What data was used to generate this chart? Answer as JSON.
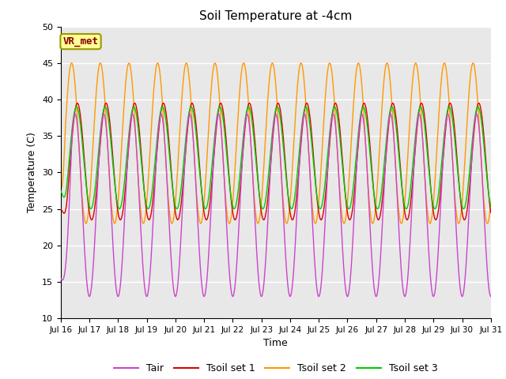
{
  "title": "Soil Temperature at -4cm",
  "xlabel": "Time",
  "ylabel": "Temperature (C)",
  "ylim": [
    10,
    50
  ],
  "yticks": [
    10,
    15,
    20,
    25,
    30,
    35,
    40,
    45,
    50
  ],
  "annotation_text": "VR_met",
  "annotation_box_color": "#ffff99",
  "annotation_text_color": "#8b0000",
  "annotation_border_color": "#999900",
  "background_color": "#e8e8e8",
  "line_colors": {
    "Tair": "#cc44cc",
    "Tsoil_set1": "#dd0000",
    "Tsoil_set2": "#ff9900",
    "Tsoil_set3": "#00cc00"
  },
  "legend_labels": [
    "Tair",
    "Tsoil set 1",
    "Tsoil set 2",
    "Tsoil set 3"
  ],
  "xtick_labels": [
    "Jul 16",
    "Jul 17",
    "Jul 18",
    "Jul 19",
    "Jul 20",
    "Jul 21",
    "Jul 22",
    "Jul 23",
    "Jul 24",
    "Jul 25",
    "Jul 26",
    "Jul 27",
    "Jul 28",
    "Jul 29",
    "Jul 30",
    "Jul 31"
  ]
}
